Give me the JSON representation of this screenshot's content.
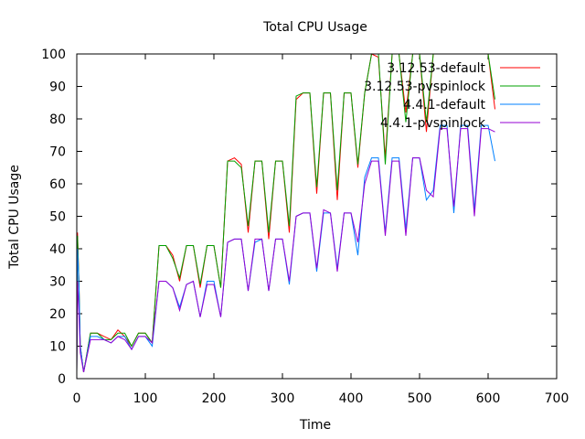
{
  "chart_data": {
    "type": "line",
    "title": "Total CPU Usage",
    "xlabel": "Time",
    "ylabel": "Total CPU Usage",
    "xlim": [
      0,
      700
    ],
    "ylim": [
      0,
      100
    ],
    "xticks": [
      0,
      100,
      200,
      300,
      400,
      500,
      600,
      700
    ],
    "yticks": [
      0,
      10,
      20,
      30,
      40,
      50,
      60,
      70,
      80,
      90,
      100
    ],
    "grid": false,
    "legend_position": "top-right",
    "series": [
      {
        "name": "3.12.53-default",
        "color": "#ff0000",
        "x": [
          0,
          1,
          3,
          5,
          10,
          20,
          30,
          40,
          50,
          60,
          70,
          80,
          90,
          100,
          110,
          120,
          130,
          140,
          150,
          160,
          170,
          180,
          190,
          200,
          210,
          220,
          230,
          240,
          250,
          260,
          270,
          280,
          290,
          300,
          310,
          320,
          330,
          340,
          350,
          360,
          370,
          380,
          390,
          400,
          410,
          420,
          430,
          440,
          450,
          460,
          470,
          480,
          490,
          500,
          510,
          520,
          530,
          540,
          550,
          560,
          570,
          580,
          590,
          600,
          610
        ],
        "y": [
          2,
          45,
          30,
          10,
          2,
          14,
          14,
          13,
          12,
          15,
          13,
          10,
          14,
          14,
          11,
          41,
          41,
          38,
          30,
          41,
          41,
          28,
          41,
          41,
          28,
          67,
          68,
          66,
          45,
          67,
          67,
          43,
          67,
          67,
          45,
          86,
          88,
          88,
          57,
          88,
          88,
          55,
          88,
          88,
          65,
          88,
          100,
          99,
          68,
          100,
          100,
          82,
          100,
          100,
          76,
          100,
          100,
          100,
          100,
          100,
          100,
          100,
          100,
          100,
          83
        ]
      },
      {
        "name": "3.12.53-pvspinlock",
        "color": "#00a000",
        "x": [
          0,
          1,
          3,
          5,
          10,
          20,
          30,
          40,
          50,
          60,
          70,
          80,
          90,
          100,
          110,
          120,
          130,
          140,
          150,
          160,
          170,
          180,
          190,
          200,
          210,
          220,
          230,
          240,
          250,
          260,
          270,
          280,
          290,
          300,
          310,
          320,
          330,
          340,
          350,
          360,
          370,
          380,
          390,
          400,
          410,
          420,
          430,
          440,
          450,
          460,
          470,
          480,
          490,
          500,
          510,
          520,
          530,
          540,
          550,
          560,
          570,
          580,
          590,
          600,
          610
        ],
        "y": [
          2,
          44,
          30,
          10,
          2,
          14,
          14,
          12,
          12,
          14,
          14,
          10,
          14,
          14,
          11,
          41,
          41,
          37,
          31,
          41,
          41,
          29,
          41,
          41,
          28,
          67,
          67,
          65,
          47,
          67,
          67,
          45,
          67,
          67,
          47,
          87,
          88,
          88,
          59,
          88,
          88,
          58,
          88,
          88,
          66,
          88,
          100,
          100,
          66,
          100,
          100,
          79,
          100,
          100,
          79,
          100,
          100,
          100,
          100,
          100,
          100,
          100,
          100,
          100,
          86
        ]
      },
      {
        "name": "4.4.1-default",
        "color": "#0080ff",
        "x": [
          0,
          1,
          3,
          5,
          10,
          20,
          30,
          40,
          50,
          60,
          70,
          80,
          90,
          100,
          110,
          120,
          130,
          140,
          150,
          160,
          170,
          180,
          190,
          200,
          210,
          220,
          230,
          240,
          250,
          260,
          270,
          280,
          290,
          300,
          310,
          320,
          330,
          340,
          350,
          360,
          370,
          380,
          390,
          400,
          410,
          420,
          430,
          440,
          450,
          460,
          470,
          480,
          490,
          500,
          510,
          520,
          530,
          540,
          550,
          560,
          570,
          580,
          590,
          600,
          610
        ],
        "y": [
          2,
          40,
          30,
          10,
          2,
          13,
          13,
          12,
          11,
          13,
          13,
          9,
          13,
          13,
          10,
          30,
          30,
          28,
          22,
          29,
          30,
          19,
          30,
          30,
          19,
          42,
          43,
          43,
          27,
          42,
          43,
          27,
          43,
          43,
          29,
          50,
          51,
          51,
          33,
          51,
          51,
          34,
          51,
          51,
          38,
          62,
          68,
          68,
          45,
          68,
          68,
          46,
          68,
          68,
          55,
          58,
          78,
          78,
          51,
          78,
          78,
          52,
          78,
          78,
          67
        ]
      },
      {
        "name": "4.4.1-pvspinlock",
        "color": "#9400d3",
        "x": [
          0,
          1,
          3,
          5,
          10,
          20,
          30,
          40,
          50,
          60,
          70,
          80,
          90,
          100,
          110,
          120,
          130,
          140,
          150,
          160,
          170,
          180,
          190,
          200,
          210,
          220,
          230,
          240,
          250,
          260,
          270,
          280,
          290,
          300,
          310,
          320,
          330,
          340,
          350,
          360,
          370,
          380,
          390,
          400,
          410,
          420,
          430,
          440,
          450,
          460,
          470,
          480,
          490,
          500,
          510,
          520,
          530,
          540,
          550,
          560,
          570,
          580,
          590,
          600,
          610
        ],
        "y": [
          2,
          30,
          20,
          8,
          2,
          12,
          12,
          12,
          11,
          13,
          12,
          9,
          13,
          13,
          11,
          30,
          30,
          28,
          21,
          29,
          30,
          19,
          29,
          29,
          19,
          42,
          43,
          43,
          27,
          43,
          43,
          27,
          43,
          43,
          30,
          50,
          51,
          51,
          34,
          52,
          51,
          33,
          51,
          51,
          42,
          60,
          67,
          67,
          44,
          67,
          67,
          44,
          68,
          68,
          58,
          56,
          77,
          77,
          53,
          77,
          77,
          50,
          77,
          77,
          76
        ]
      }
    ]
  }
}
